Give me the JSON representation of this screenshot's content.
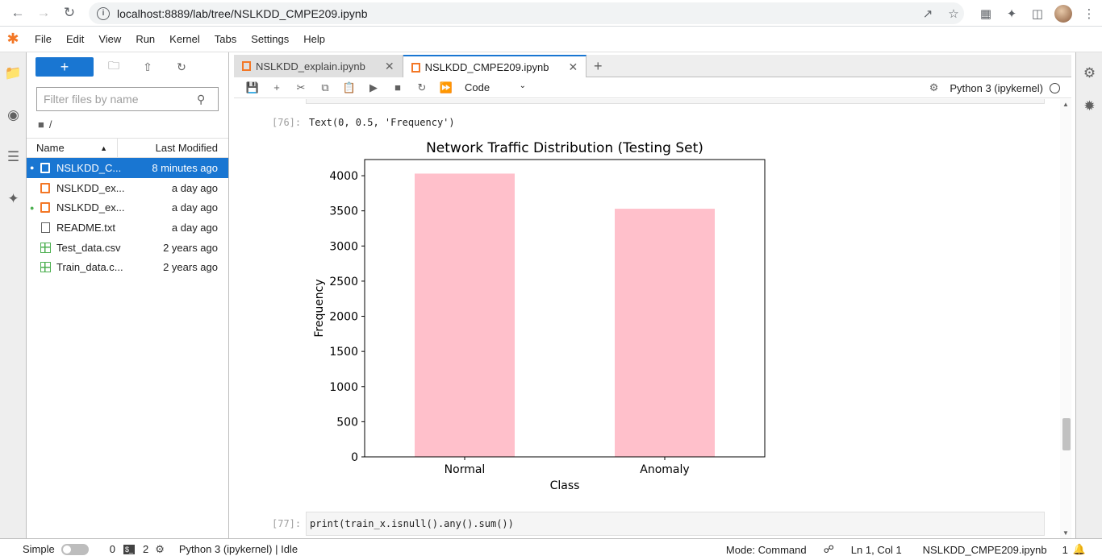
{
  "browser": {
    "url": "localhost:8889/lab/tree/NSLKDD_CMPE209.ipynb"
  },
  "menu": [
    "File",
    "Edit",
    "View",
    "Run",
    "Kernel",
    "Tabs",
    "Settings",
    "Help"
  ],
  "filebrowser": {
    "filter_placeholder": "Filter files by name",
    "path": "/",
    "col_name": "Name",
    "col_modified": "Last Modified",
    "files": [
      {
        "name": "NSLKDD_C...",
        "modified": "8 minutes ago",
        "type": "notebook",
        "running": true,
        "selected": true
      },
      {
        "name": "NSLKDD_ex...",
        "modified": "a day ago",
        "type": "notebook",
        "running": false,
        "selected": false
      },
      {
        "name": "NSLKDD_ex...",
        "modified": "a day ago",
        "type": "notebook",
        "running": true,
        "selected": false
      },
      {
        "name": "README.txt",
        "modified": "a day ago",
        "type": "text",
        "running": false,
        "selected": false
      },
      {
        "name": "Test_data.csv",
        "modified": "2 years ago",
        "type": "csv",
        "running": false,
        "selected": false
      },
      {
        "name": "Train_data.c...",
        "modified": "2 years ago",
        "type": "csv",
        "running": false,
        "selected": false
      }
    ]
  },
  "tabs": [
    {
      "label": "NSLKDD_explain.ipynb",
      "active": false
    },
    {
      "label": "NSLKDD_CMPE209.ipynb",
      "active": true
    }
  ],
  "toolbar": {
    "cell_type": "Code",
    "kernel": "Python 3 (ipykernel)"
  },
  "cells": {
    "out76_prompt": "[76]:",
    "out76_text": "Text(0, 0.5, 'Frequency')",
    "in77_prompt": "[77]:",
    "in77_code": "print(train_x.isnull().any().sum())"
  },
  "chart_data": {
    "type": "bar",
    "title": "Network Traffic Distribution (Testing Set)",
    "xlabel": "Class",
    "ylabel": "Frequency",
    "categories": [
      "Normal",
      "Anomaly"
    ],
    "values": [
      4030,
      3530
    ],
    "ylim": [
      0,
      4230
    ],
    "yticks": [
      0,
      500,
      1000,
      1500,
      2000,
      2500,
      3000,
      3500,
      4000
    ],
    "bar_color": "#ffc0cb"
  },
  "statusbar": {
    "mode_label": "Simple",
    "terminals": "0",
    "kernels": "2",
    "kernel_status": "Python 3 (ipykernel) | Idle",
    "mode": "Mode: Command",
    "position": "Ln 1, Col 1",
    "filename": "NSLKDD_CMPE209.ipynb",
    "notifications": "1"
  }
}
